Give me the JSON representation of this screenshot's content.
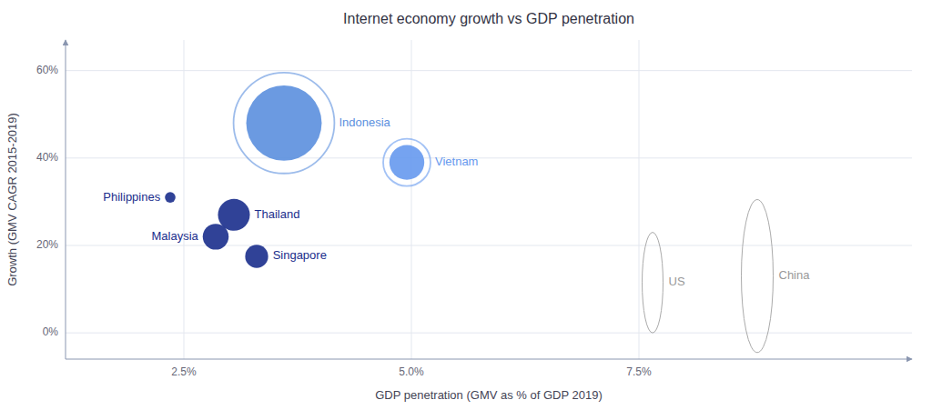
{
  "chart_data": {
    "type": "bubble",
    "title": "Internet economy growth vs GDP penetration",
    "x_label": "GDP penetration (GMV as % of GDP 2019)",
    "y_label": "Growth (GMV CAGR 2015-2019)",
    "labels": [
      "Indonesia",
      "Vietnam",
      "Philippines",
      "Thailand",
      "Malaysia",
      "Singapore"
    ],
    "x": [
      3.6,
      4.95,
      2.35,
      3.05,
      2.85,
      3.3
    ],
    "values": [
      0.48,
      0.39,
      0.31,
      0.27,
      0.22,
      0.175
    ],
    "sizes": [
      2800,
      600,
      55,
      500,
      330,
      260
    ],
    "ring_sizes": [
      5000,
      1100,
      null,
      null,
      null,
      null
    ],
    "colors": [
      "#5b8fde",
      "#6699ee",
      "#1a2e8c",
      "#1a2e8c",
      "#1a2e8c",
      "#1a2e8c"
    ],
    "reference_circles": {
      "labels": [
        "China",
        "US"
      ],
      "x": [
        8.8,
        7.65
      ],
      "values": [
        0.13,
        0.115
      ],
      "radii": [
        0.175,
        0.115
      ]
    },
    "xlim": [
      1.2,
      10.5
    ],
    "ylim": [
      -0.06,
      0.67
    ],
    "xticks": [
      {
        "value": 2.5,
        "label": "2.5%"
      },
      {
        "value": 5.0,
        "label": "5.0%"
      },
      {
        "value": 7.5,
        "label": "7.5%"
      }
    ],
    "yticks": [
      {
        "value": 0.0,
        "label": "0%"
      },
      {
        "value": 0.2,
        "label": "20%"
      },
      {
        "value": 0.4,
        "label": "40%"
      },
      {
        "value": 0.6,
        "label": "60%"
      }
    ],
    "grid": true
  }
}
